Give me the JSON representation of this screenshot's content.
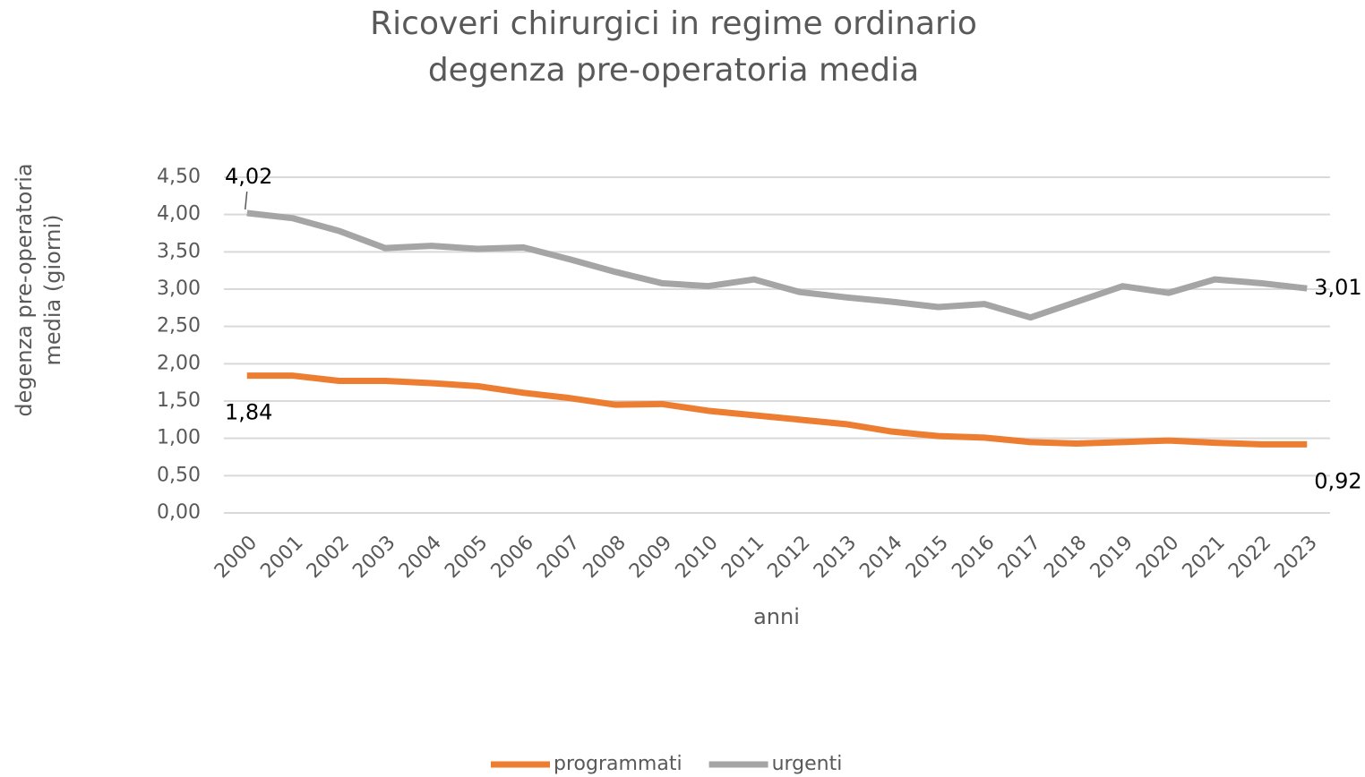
{
  "chart_data": {
    "type": "line",
    "title": "Ricoveri chirurgici in regime ordinario",
    "subtitle": "degenza pre-operatoria media",
    "x_label": "anni",
    "y_label": "degenza pre-operatoria media (giorni)",
    "categories": [
      "2000",
      "2001",
      "2002",
      "2003",
      "2004",
      "2005",
      "2006",
      "2007",
      "2008",
      "2009",
      "2010",
      "2011",
      "2012",
      "2013",
      "2014",
      "2015",
      "2016",
      "2017",
      "2018",
      "2019",
      "2020",
      "2021",
      "2022",
      "2023"
    ],
    "series": [
      {
        "name": "programmati",
        "color": "#ED7D31",
        "values": [
          1.84,
          1.84,
          1.77,
          1.77,
          1.74,
          1.7,
          1.61,
          1.54,
          1.45,
          1.46,
          1.37,
          1.31,
          1.25,
          1.19,
          1.09,
          1.03,
          1.01,
          0.95,
          0.93,
          0.95,
          0.97,
          0.94,
          0.92,
          0.92
        ],
        "value_labels": [
          "1,84",
          null,
          null,
          null,
          null,
          null,
          null,
          null,
          null,
          null,
          null,
          null,
          null,
          null,
          null,
          null,
          null,
          null,
          null,
          null,
          null,
          null,
          null,
          "0,92"
        ]
      },
      {
        "name": "urgenti",
        "color": "#A5A5A5",
        "values": [
          4.02,
          3.95,
          3.78,
          3.55,
          3.58,
          3.54,
          3.56,
          3.4,
          3.23,
          3.08,
          3.04,
          3.13,
          2.96,
          2.89,
          2.83,
          2.76,
          2.8,
          2.62,
          2.83,
          3.04,
          2.95,
          3.13,
          3.08,
          3.01
        ],
        "value_labels": [
          "4,02",
          null,
          null,
          null,
          null,
          null,
          null,
          null,
          null,
          null,
          null,
          null,
          null,
          null,
          null,
          null,
          null,
          null,
          null,
          null,
          null,
          null,
          null,
          "3,01"
        ]
      }
    ],
    "ylim": [
      0,
      4.5
    ],
    "yticks": [
      {
        "value": 0,
        "label": "0,00"
      },
      {
        "value": 0.5,
        "label": "0,50"
      },
      {
        "value": 1,
        "label": "1,00"
      },
      {
        "value": 1.5,
        "label": "1,50"
      },
      {
        "value": 2,
        "label": "2,00"
      },
      {
        "value": 2.5,
        "label": "2,50"
      },
      {
        "value": 3,
        "label": "3,00"
      },
      {
        "value": 3.5,
        "label": "3,50"
      },
      {
        "value": 4,
        "label": "4,00"
      },
      {
        "value": 4.5,
        "label": "4,50"
      }
    ],
    "grid": true,
    "legend": "bottom"
  }
}
